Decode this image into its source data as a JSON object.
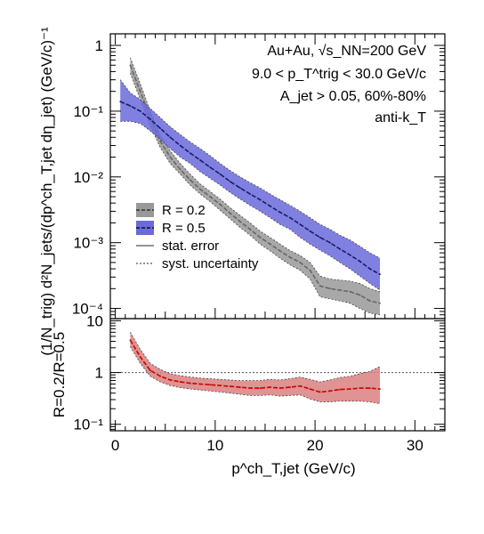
{
  "chart_data": [
    {
      "type": "line",
      "panel": "spectra",
      "ylabel": "(1/N_trig) d²N_jets/(dp^ch_T,jet dη_jet)  (GeV/c)⁻¹",
      "yscale": "log",
      "ylim": [
        7e-05,
        1.5
      ],
      "xlim": [
        -0.5,
        33
      ],
      "y_ticks": [
        {
          "value": 1,
          "label": "1"
        },
        {
          "value": 0.1,
          "label": "10⁻¹"
        },
        {
          "value": 0.01,
          "label": "10⁻²"
        },
        {
          "value": 0.001,
          "label": "10⁻³"
        },
        {
          "value": 0.0001,
          "label": "10⁻⁴"
        }
      ],
      "annotations": [
        "Au+Au, √s_NN=200 GeV",
        "9.0 < p_T^trig < 30.0 GeV/c",
        "A_jet > 0.05, 60%-80%",
        "anti-k_T"
      ],
      "legend": {
        "placement": "center-left",
        "entries": [
          {
            "label": "R = 0.2",
            "color": "#888888"
          },
          {
            "label": "R = 0.5",
            "color": "#5555dd"
          },
          {
            "label": "stat. error",
            "color": "#555555"
          },
          {
            "label": "syst. uncertainty",
            "color": "#555555"
          }
        ]
      },
      "series": [
        {
          "name": "R = 0.2",
          "color": "#666666",
          "band_color": "#999999",
          "x": [
            1.5,
            2.5,
            3.5,
            4.5,
            5.5,
            6.5,
            7.5,
            8.5,
            9.5,
            10.5,
            11.5,
            12.5,
            13.5,
            14.5,
            15.5,
            16.5,
            17.5,
            18.5,
            19.5,
            20.5,
            21.5,
            22.5,
            23.5,
            24.5,
            25.5,
            26.5
          ],
          "y": [
            0.5,
            0.2,
            0.08,
            0.035,
            0.02,
            0.013,
            0.009,
            0.0065,
            0.005,
            0.0038,
            0.0028,
            0.0021,
            0.0016,
            0.0012,
            0.00095,
            0.00075,
            0.0006,
            0.0005,
            0.00038,
            0.00022,
            0.0002,
            0.00019,
            0.00018,
            0.00016,
            0.00013,
            0.00012
          ],
          "syst_low": [
            0.38,
            0.15,
            0.06,
            0.028,
            0.016,
            0.011,
            0.0075,
            0.0055,
            0.0042,
            0.0031,
            0.0023,
            0.0017,
            0.0013,
            0.00095,
            0.00075,
            0.00058,
            0.00046,
            0.00038,
            0.00028,
            0.00015,
            0.00014,
            0.00013,
            0.00012,
            0.0001,
            8.5e-05,
            8e-05
          ],
          "syst_high": [
            0.65,
            0.26,
            0.1,
            0.043,
            0.025,
            0.016,
            0.011,
            0.0078,
            0.006,
            0.0046,
            0.0034,
            0.0026,
            0.002,
            0.0015,
            0.0012,
            0.00095,
            0.00076,
            0.00064,
            0.0005,
            0.00031,
            0.00028,
            0.00027,
            0.00026,
            0.00024,
            0.0002,
            0.00018
          ]
        },
        {
          "name": "R = 0.5",
          "color": "#1a1a6e",
          "band_color": "#6a6adc",
          "x": [
            0.5,
            1.5,
            2.5,
            3.5,
            4.5,
            5.5,
            6.5,
            7.5,
            8.5,
            9.5,
            10.5,
            11.5,
            12.5,
            13.5,
            14.5,
            15.5,
            16.5,
            17.5,
            18.5,
            19.5,
            20.5,
            21.5,
            22.5,
            23.5,
            24.5,
            25.5,
            26.5
          ],
          "y": [
            0.14,
            0.12,
            0.1,
            0.075,
            0.055,
            0.04,
            0.03,
            0.023,
            0.018,
            0.014,
            0.011,
            0.0085,
            0.0068,
            0.0055,
            0.0045,
            0.0036,
            0.0029,
            0.0024,
            0.0019,
            0.0015,
            0.0012,
            0.001,
            0.0008,
            0.00065,
            0.00052,
            0.0004,
            0.00033
          ],
          "syst_low": [
            0.07,
            0.07,
            0.065,
            0.05,
            0.037,
            0.027,
            0.02,
            0.016,
            0.012,
            0.0095,
            0.0075,
            0.0058,
            0.0046,
            0.0037,
            0.003,
            0.0024,
            0.0019,
            0.0016,
            0.0012,
            0.00095,
            0.00077,
            0.00063,
            0.0005,
            0.0004,
            0.00031,
            0.00024,
            0.00019
          ],
          "syst_high": [
            0.3,
            0.19,
            0.15,
            0.11,
            0.08,
            0.058,
            0.044,
            0.034,
            0.027,
            0.021,
            0.016,
            0.0125,
            0.01,
            0.0082,
            0.0068,
            0.0055,
            0.0045,
            0.0037,
            0.003,
            0.0024,
            0.0019,
            0.0016,
            0.0013,
            0.0011,
            0.00088,
            0.0007,
            0.00058
          ]
        }
      ]
    },
    {
      "type": "line",
      "panel": "ratio",
      "ylabel": "R=0.2/R=0.5",
      "xlabel": "p^ch_T,jet (GeV/c)",
      "yscale": "log",
      "ylim": [
        0.075,
        11
      ],
      "xlim": [
        -0.5,
        33
      ],
      "x_ticks": [
        0,
        10,
        20,
        30
      ],
      "y_ticks": [
        {
          "value": 10,
          "label": "10"
        },
        {
          "value": 1,
          "label": "1"
        },
        {
          "value": 0.1,
          "label": "10⁻¹"
        }
      ],
      "reference_line": 1,
      "series": [
        {
          "name": "",
          "color": "#cc0000",
          "band_color": "#d98080",
          "x": [
            1.5,
            2.5,
            3.5,
            4.5,
            5.5,
            6.5,
            7.5,
            8.5,
            9.5,
            10.5,
            11.5,
            12.5,
            13.5,
            14.5,
            15.5,
            16.5,
            17.5,
            18.5,
            19.5,
            20.5,
            21.5,
            22.5,
            23.5,
            24.5,
            25.5,
            26.5
          ],
          "y": [
            4.2,
            2.0,
            1.1,
            0.85,
            0.72,
            0.66,
            0.62,
            0.6,
            0.58,
            0.56,
            0.54,
            0.52,
            0.5,
            0.5,
            0.52,
            0.5,
            0.52,
            0.55,
            0.48,
            0.42,
            0.44,
            0.47,
            0.48,
            0.5,
            0.5,
            0.48
          ],
          "syst_low": [
            3.2,
            1.5,
            0.85,
            0.66,
            0.56,
            0.51,
            0.48,
            0.46,
            0.44,
            0.42,
            0.4,
            0.38,
            0.36,
            0.36,
            0.37,
            0.35,
            0.36,
            0.37,
            0.31,
            0.27,
            0.27,
            0.28,
            0.28,
            0.28,
            0.27,
            0.25
          ],
          "syst_high": [
            6.0,
            2.8,
            1.5,
            1.15,
            0.95,
            0.87,
            0.82,
            0.78,
            0.76,
            0.74,
            0.72,
            0.7,
            0.7,
            0.7,
            0.74,
            0.72,
            0.76,
            0.82,
            0.74,
            0.66,
            0.72,
            0.8,
            0.85,
            0.95,
            1.05,
            1.3
          ]
        }
      ]
    }
  ]
}
